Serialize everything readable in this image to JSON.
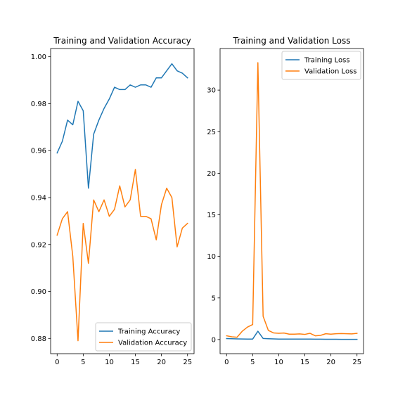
{
  "chart_data": [
    {
      "type": "line",
      "title": "Training and Validation Accuracy",
      "xlabel": "",
      "ylabel": "",
      "xlim": [
        -1.25,
        26.25
      ],
      "ylim": [
        0.8735,
        1.0035
      ],
      "xticks": [
        0,
        5,
        10,
        15,
        20,
        25
      ],
      "yticks": [
        0.88,
        0.9,
        0.92,
        0.94,
        0.96,
        0.98,
        1.0
      ],
      "ytick_labels": [
        "0.88",
        "0.90",
        "0.92",
        "0.94",
        "0.96",
        "0.98",
        "1.00"
      ],
      "legend_position": "lower-right",
      "x": [
        0,
        1,
        2,
        3,
        4,
        5,
        6,
        7,
        8,
        9,
        10,
        11,
        12,
        13,
        14,
        15,
        16,
        17,
        18,
        19,
        20,
        21,
        22,
        23,
        24,
        25
      ],
      "series": [
        {
          "name": "Training Accuracy",
          "color": "#1f77b4",
          "values": [
            0.959,
            0.964,
            0.973,
            0.971,
            0.981,
            0.977,
            0.944,
            0.967,
            0.973,
            0.978,
            0.982,
            0.987,
            0.986,
            0.986,
            0.988,
            0.987,
            0.988,
            0.988,
            0.987,
            0.991,
            0.991,
            0.994,
            0.997,
            0.994,
            0.993,
            0.991
          ]
        },
        {
          "name": "Validation Accuracy",
          "color": "#ff7f0e",
          "values": [
            0.924,
            0.931,
            0.934,
            0.915,
            0.879,
            0.929,
            0.912,
            0.939,
            0.934,
            0.939,
            0.932,
            0.935,
            0.945,
            0.936,
            0.939,
            0.952,
            0.932,
            0.932,
            0.931,
            0.922,
            0.937,
            0.944,
            0.94,
            0.919,
            0.927,
            0.929
          ]
        }
      ]
    },
    {
      "type": "line",
      "title": "Training and Validation Loss",
      "xlabel": "",
      "ylabel": "",
      "xlim": [
        -1.25,
        26.25
      ],
      "ylim": [
        -1.7,
        35.0
      ],
      "xticks": [
        0,
        5,
        10,
        15,
        20,
        25
      ],
      "yticks": [
        0,
        5,
        10,
        15,
        20,
        25,
        30
      ],
      "ytick_labels": [
        "0",
        "5",
        "10",
        "15",
        "20",
        "25",
        "30"
      ],
      "legend_position": "upper-right",
      "x": [
        0,
        1,
        2,
        3,
        4,
        5,
        6,
        7,
        8,
        9,
        10,
        11,
        12,
        13,
        14,
        15,
        16,
        17,
        18,
        19,
        20,
        21,
        22,
        23,
        24,
        25
      ],
      "series": [
        {
          "name": "Training Loss",
          "color": "#1f77b4",
          "values": [
            0.12,
            0.1,
            0.08,
            0.07,
            0.06,
            0.06,
            1.0,
            0.13,
            0.1,
            0.08,
            0.06,
            0.05,
            0.05,
            0.05,
            0.05,
            0.05,
            0.05,
            0.04,
            0.04,
            0.03,
            0.03,
            0.03,
            0.02,
            0.02,
            0.02,
            0.02
          ]
        },
        {
          "name": "Validation Loss",
          "color": "#ff7f0e",
          "values": [
            0.45,
            0.33,
            0.28,
            1.0,
            1.5,
            1.8,
            33.3,
            2.8,
            1.1,
            0.8,
            0.75,
            0.78,
            0.65,
            0.65,
            0.68,
            0.62,
            0.75,
            0.45,
            0.5,
            0.7,
            0.65,
            0.7,
            0.72,
            0.7,
            0.68,
            0.75
          ]
        }
      ]
    }
  ]
}
